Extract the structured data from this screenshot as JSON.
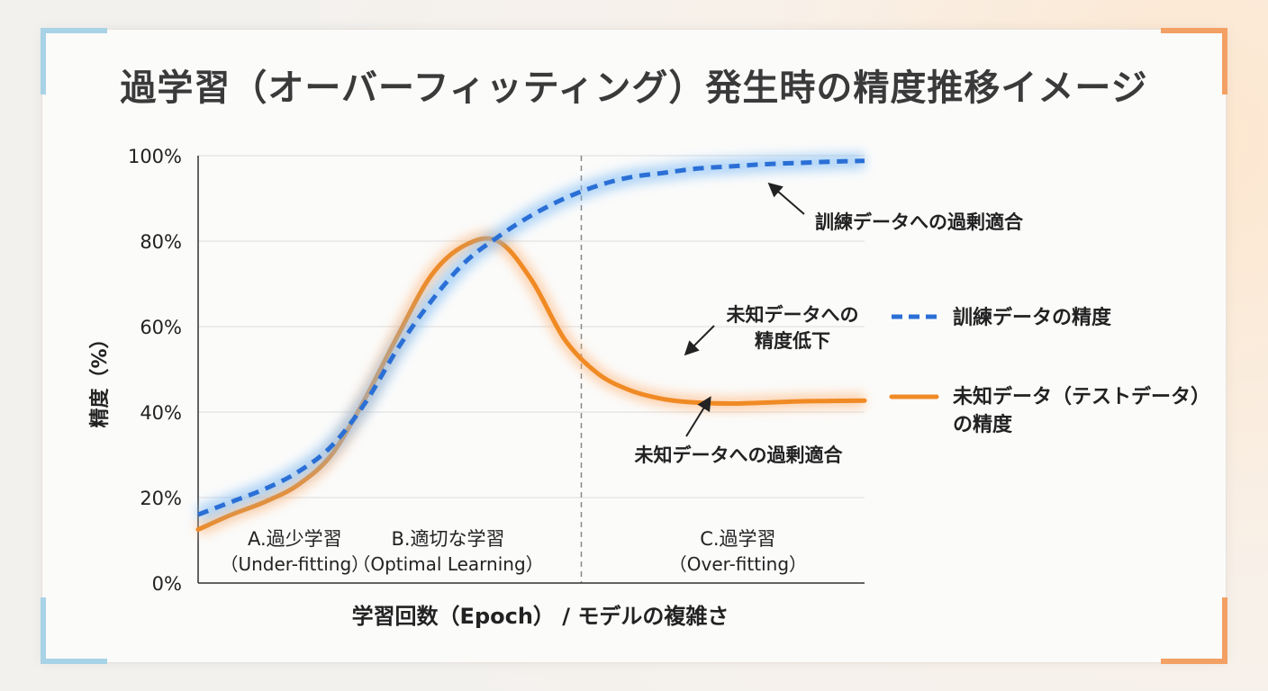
{
  "title": "過学習（オーバーフィッティング）発生時の精度推移イメージ",
  "chart_data": {
    "type": "line",
    "title": "過学習（オーバーフィッティング）発生時の精度推移イメージ",
    "xlabel": "学習回数（Epoch） / モデルの複雑さ",
    "ylabel": "精度（%）",
    "ylim": [
      0,
      100
    ],
    "yticks": [
      "0%",
      "20%",
      "40%",
      "60%",
      "80%",
      "100%"
    ],
    "grid": true,
    "x": [
      0,
      5,
      10,
      15,
      20,
      25,
      30,
      35,
      40,
      45,
      50,
      55,
      60,
      65,
      70,
      75,
      80,
      85,
      90,
      95,
      100
    ],
    "series": [
      {
        "name": "訓練データの精度",
        "color": "#2a6fd6",
        "style": "dashed",
        "values": [
          16,
          19,
          22,
          26,
          32,
          42,
          55,
          66,
          75,
          81,
          86,
          90,
          93,
          95,
          96,
          97,
          97.5,
          98,
          98.3,
          98.6,
          98.8
        ]
      },
      {
        "name": "未知データ（テストデータ）の精度",
        "color": "#f08a24",
        "style": "solid",
        "values": [
          12.5,
          16,
          19,
          23,
          30,
          43,
          58,
          72,
          79,
          80,
          71,
          57,
          49,
          45,
          43,
          42.2,
          42,
          42.2,
          42.5,
          42.6,
          42.7
        ]
      }
    ],
    "divider_x": 57.5,
    "phases": [
      {
        "label": "A.過少学習",
        "sub": "（Under-fitting）"
      },
      {
        "label": "B.適切な学習",
        "sub": "（Optimal Learning）"
      },
      {
        "label": "C.過学習",
        "sub": "（Over-fitting）"
      }
    ],
    "annotations": {
      "train_overfit": "訓練データへの過剰適合",
      "test_drop_1": "未知データへの",
      "test_drop_2": "精度低下",
      "test_overfit": "未知データへの過剰適合"
    },
    "legend": [
      {
        "label": "訓練データの精度"
      },
      {
        "label": "未知データ（テストデータ）",
        "label2": "の精度"
      }
    ]
  }
}
